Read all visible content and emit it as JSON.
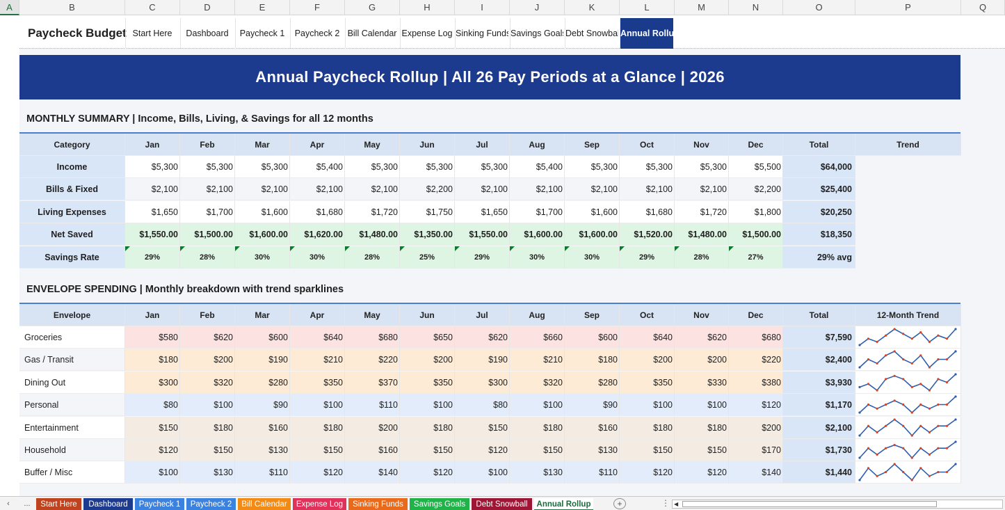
{
  "column_headers": [
    "A",
    "B",
    "C",
    "D",
    "E",
    "F",
    "G",
    "H",
    "I",
    "J",
    "K",
    "L",
    "M",
    "N",
    "O",
    "P",
    "Q"
  ],
  "brand": "Paycheck Budget",
  "nav_tabs": [
    {
      "label": "Start Here",
      "active": false
    },
    {
      "label": "Dashboard",
      "active": false
    },
    {
      "label": "Paycheck 1",
      "active": false
    },
    {
      "label": "Paycheck 2",
      "active": false
    },
    {
      "label": "Bill Calendar",
      "active": false
    },
    {
      "label": "Expense Log",
      "active": false
    },
    {
      "label": "Sinking Funds",
      "active": false
    },
    {
      "label": "Savings Goals",
      "active": false
    },
    {
      "label": "Debt Snowball",
      "active": false
    },
    {
      "label": "Annual Rollup",
      "active": true
    }
  ],
  "banner": "Annual Paycheck Rollup  |  All 26 Pay Periods at a Glance  |  2026",
  "monthly": {
    "title": "MONTHLY SUMMARY  |  Income, Bills, Living, & Savings for all 12 months",
    "header_category": "Category",
    "months": [
      "Jan",
      "Feb",
      "Mar",
      "Apr",
      "May",
      "Jun",
      "Jul",
      "Aug",
      "Sep",
      "Oct",
      "Nov",
      "Dec"
    ],
    "header_total": "Total",
    "header_trend": "Trend",
    "rows": [
      {
        "label": "Income",
        "values": [
          "$5,300",
          "$5,300",
          "$5,300",
          "$5,400",
          "$5,300",
          "$5,300",
          "$5,300",
          "$5,400",
          "$5,300",
          "$5,300",
          "$5,300",
          "$5,500"
        ],
        "total": "$64,000",
        "style": "white"
      },
      {
        "label": "Bills & Fixed",
        "values": [
          "$2,100",
          "$2,100",
          "$2,100",
          "$2,100",
          "$2,100",
          "$2,200",
          "$2,100",
          "$2,100",
          "$2,100",
          "$2,100",
          "$2,100",
          "$2,200"
        ],
        "total": "$25,400",
        "style": "alt"
      },
      {
        "label": "Living Expenses",
        "values": [
          "$1,650",
          "$1,700",
          "$1,600",
          "$1,680",
          "$1,720",
          "$1,750",
          "$1,650",
          "$1,700",
          "$1,600",
          "$1,680",
          "$1,720",
          "$1,800"
        ],
        "total": "$20,250",
        "style": "white"
      },
      {
        "label": "Net Saved",
        "values": [
          "$1,550.00",
          "$1,500.00",
          "$1,600.00",
          "$1,620.00",
          "$1,480.00",
          "$1,350.00",
          "$1,550.00",
          "$1,600.00",
          "$1,600.00",
          "$1,520.00",
          "$1,480.00",
          "$1,500.00"
        ],
        "total": "$18,350",
        "style": "green"
      },
      {
        "label": "Savings Rate",
        "values": [
          "29%",
          "28%",
          "30%",
          "30%",
          "28%",
          "25%",
          "29%",
          "30%",
          "30%",
          "29%",
          "28%",
          "27%"
        ],
        "total": "29% avg",
        "style": "greenrate"
      }
    ]
  },
  "envelope": {
    "title": "ENVELOPE SPENDING  |  Monthly breakdown with trend sparklines",
    "header_envelope": "Envelope",
    "months": [
      "Jan",
      "Feb",
      "Mar",
      "Apr",
      "May",
      "Jun",
      "Jul",
      "Aug",
      "Sep",
      "Oct",
      "Nov",
      "Dec"
    ],
    "header_total": "Total",
    "header_trend": "12-Month Trend",
    "rows": [
      {
        "label": "Groceries",
        "values": [
          "$580",
          "$620",
          "$600",
          "$640",
          "$680",
          "$650",
          "$620",
          "$660",
          "$600",
          "$640",
          "$620",
          "$680"
        ],
        "data": [
          580,
          620,
          600,
          640,
          680,
          650,
          620,
          660,
          600,
          640,
          620,
          680
        ],
        "total": "$7,590",
        "color": "pink"
      },
      {
        "label": "Gas / Transit",
        "values": [
          "$180",
          "$200",
          "$190",
          "$210",
          "$220",
          "$200",
          "$190",
          "$210",
          "$180",
          "$200",
          "$200",
          "$220"
        ],
        "data": [
          180,
          200,
          190,
          210,
          220,
          200,
          190,
          210,
          180,
          200,
          200,
          220
        ],
        "total": "$2,400",
        "color": "orange"
      },
      {
        "label": "Dining Out",
        "values": [
          "$300",
          "$320",
          "$280",
          "$350",
          "$370",
          "$350",
          "$300",
          "$320",
          "$280",
          "$350",
          "$330",
          "$380"
        ],
        "data": [
          300,
          320,
          280,
          350,
          370,
          350,
          300,
          320,
          280,
          350,
          330,
          380
        ],
        "total": "$3,930",
        "color": "orange"
      },
      {
        "label": "Personal",
        "values": [
          "$80",
          "$100",
          "$90",
          "$100",
          "$110",
          "$100",
          "$80",
          "$100",
          "$90",
          "$100",
          "$100",
          "$120"
        ],
        "data": [
          80,
          100,
          90,
          100,
          110,
          100,
          80,
          100,
          90,
          100,
          100,
          120
        ],
        "total": "$1,170",
        "color": "blue"
      },
      {
        "label": "Entertainment",
        "values": [
          "$150",
          "$180",
          "$160",
          "$180",
          "$200",
          "$180",
          "$150",
          "$180",
          "$160",
          "$180",
          "$180",
          "$200"
        ],
        "data": [
          150,
          180,
          160,
          180,
          200,
          180,
          150,
          180,
          160,
          180,
          180,
          200
        ],
        "total": "$2,100",
        "color": "beige"
      },
      {
        "label": "Household",
        "values": [
          "$120",
          "$150",
          "$130",
          "$150",
          "$160",
          "$150",
          "$120",
          "$150",
          "$130",
          "$150",
          "$150",
          "$170"
        ],
        "data": [
          120,
          150,
          130,
          150,
          160,
          150,
          120,
          150,
          130,
          150,
          150,
          170
        ],
        "total": "$1,730",
        "color": "beige"
      },
      {
        "label": "Buffer / Misc",
        "values": [
          "$100",
          "$130",
          "$110",
          "$120",
          "$140",
          "$120",
          "$100",
          "$130",
          "$110",
          "$120",
          "$120",
          "$140"
        ],
        "data": [
          100,
          130,
          110,
          120,
          140,
          120,
          100,
          130,
          110,
          120,
          120,
          140
        ],
        "total": "$1,440",
        "color": "blue"
      }
    ]
  },
  "sheet_tabs": [
    {
      "label": "Start Here",
      "color": "#c0431f",
      "active": false
    },
    {
      "label": "Dashboard",
      "color": "#1c3a8e",
      "active": false
    },
    {
      "label": "Paycheck 1",
      "color": "#3b82e0",
      "active": false
    },
    {
      "label": "Paycheck 2",
      "color": "#3b82e0",
      "active": false
    },
    {
      "label": "Bill Calendar",
      "color": "#f28a16",
      "active": false
    },
    {
      "label": "Expense Log",
      "color": "#e0315a",
      "active": false
    },
    {
      "label": "Sinking Funds",
      "color": "#ea6a1c",
      "active": false
    },
    {
      "label": "Savings Goals",
      "color": "#21b34a",
      "active": false
    },
    {
      "label": "Debt Snowball",
      "color": "#9e1636",
      "active": false
    },
    {
      "label": "Annual Rollup",
      "color": "#ffffff",
      "active": true
    }
  ],
  "tab_nav_ellipsis": "...",
  "add_sheet_glyph": "+",
  "colors": {
    "accent": "#1c3a8e",
    "sparkline": "#2e5fae",
    "marker": "#d9441e"
  }
}
